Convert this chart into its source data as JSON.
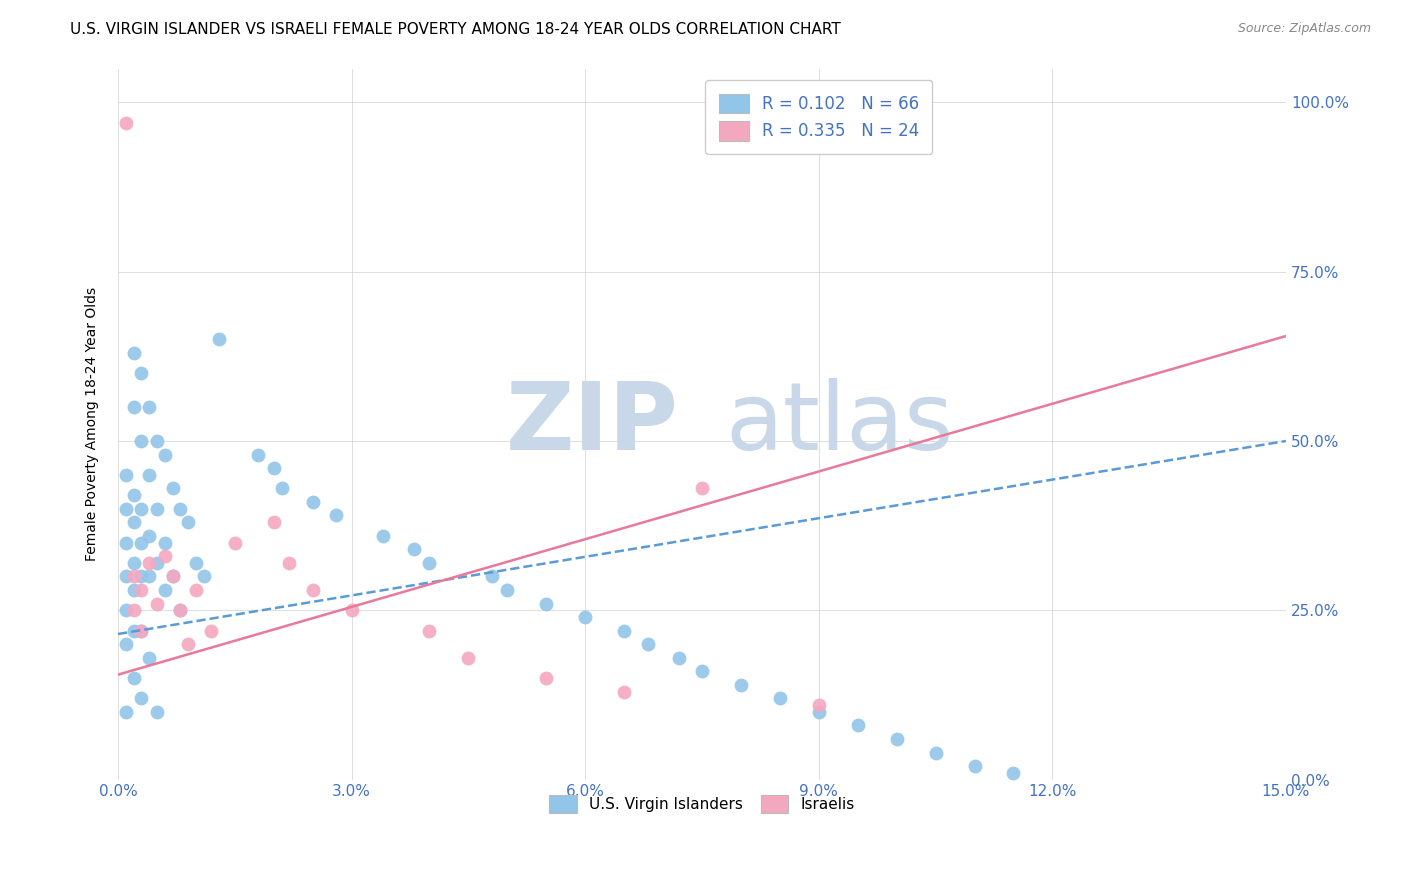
{
  "title": "U.S. VIRGIN ISLANDER VS ISRAELI FEMALE POVERTY AMONG 18-24 YEAR OLDS CORRELATION CHART",
  "source": "Source: ZipAtlas.com",
  "xlabel_ticks": [
    "0.0%",
    "3.0%",
    "6.0%",
    "9.0%",
    "12.0%",
    "15.0%"
  ],
  "ylabel_ticks": [
    "0.0%",
    "25.0%",
    "50.0%",
    "75.0%",
    "100.0%"
  ],
  "xlim": [
    0.0,
    0.15
  ],
  "ylim": [
    0.0,
    1.05
  ],
  "blue_scatter_x": [
    0.001,
    0.001,
    0.001,
    0.001,
    0.001,
    0.001,
    0.001,
    0.002,
    0.002,
    0.002,
    0.002,
    0.002,
    0.002,
    0.002,
    0.002,
    0.003,
    0.003,
    0.003,
    0.003,
    0.003,
    0.003,
    0.003,
    0.004,
    0.004,
    0.004,
    0.004,
    0.004,
    0.005,
    0.005,
    0.005,
    0.005,
    0.006,
    0.006,
    0.006,
    0.007,
    0.007,
    0.008,
    0.008,
    0.009,
    0.01,
    0.011,
    0.013,
    0.018,
    0.02,
    0.021,
    0.025,
    0.028,
    0.034,
    0.038,
    0.04,
    0.048,
    0.05,
    0.055,
    0.06,
    0.065,
    0.068,
    0.072,
    0.075,
    0.08,
    0.085,
    0.09,
    0.095,
    0.1,
    0.105,
    0.11,
    0.115
  ],
  "blue_scatter_y": [
    0.45,
    0.4,
    0.35,
    0.3,
    0.25,
    0.2,
    0.1,
    0.63,
    0.55,
    0.42,
    0.38,
    0.32,
    0.28,
    0.22,
    0.15,
    0.6,
    0.5,
    0.4,
    0.35,
    0.3,
    0.22,
    0.12,
    0.55,
    0.45,
    0.36,
    0.3,
    0.18,
    0.5,
    0.4,
    0.32,
    0.1,
    0.48,
    0.35,
    0.28,
    0.43,
    0.3,
    0.4,
    0.25,
    0.38,
    0.32,
    0.3,
    0.65,
    0.48,
    0.46,
    0.43,
    0.41,
    0.39,
    0.36,
    0.34,
    0.32,
    0.3,
    0.28,
    0.26,
    0.24,
    0.22,
    0.2,
    0.18,
    0.16,
    0.14,
    0.12,
    0.1,
    0.08,
    0.06,
    0.04,
    0.02,
    0.01
  ],
  "pink_scatter_x": [
    0.001,
    0.002,
    0.002,
    0.003,
    0.003,
    0.004,
    0.005,
    0.006,
    0.007,
    0.008,
    0.009,
    0.01,
    0.012,
    0.015,
    0.02,
    0.022,
    0.025,
    0.03,
    0.04,
    0.045,
    0.055,
    0.065,
    0.075,
    0.09
  ],
  "pink_scatter_y": [
    0.97,
    0.3,
    0.25,
    0.28,
    0.22,
    0.32,
    0.26,
    0.33,
    0.3,
    0.25,
    0.2,
    0.28,
    0.22,
    0.35,
    0.38,
    0.32,
    0.28,
    0.25,
    0.22,
    0.18,
    0.15,
    0.13,
    0.43,
    0.11
  ],
  "blue_line_x": [
    0.0,
    0.15
  ],
  "blue_line_y": [
    0.215,
    0.5
  ],
  "pink_line_x": [
    0.0,
    0.15
  ],
  "pink_line_y": [
    0.155,
    0.655
  ],
  "blue_line_color": "#5b9bd5",
  "pink_line_color": "#e8799a",
  "blue_scatter_color": "#92c5e8",
  "pink_scatter_color": "#f4a8c0",
  "grid_color": "#d0d0d0",
  "watermark_zip": "ZIP",
  "watermark_atlas": "atlas",
  "watermark_color": "#c8d8e8",
  "right_axis_label_color": "#4472c4",
  "legend_text_color": "#4472c4",
  "title_fontsize": 11,
  "ylabel_text": "Female Poverty Among 18-24 Year Olds"
}
